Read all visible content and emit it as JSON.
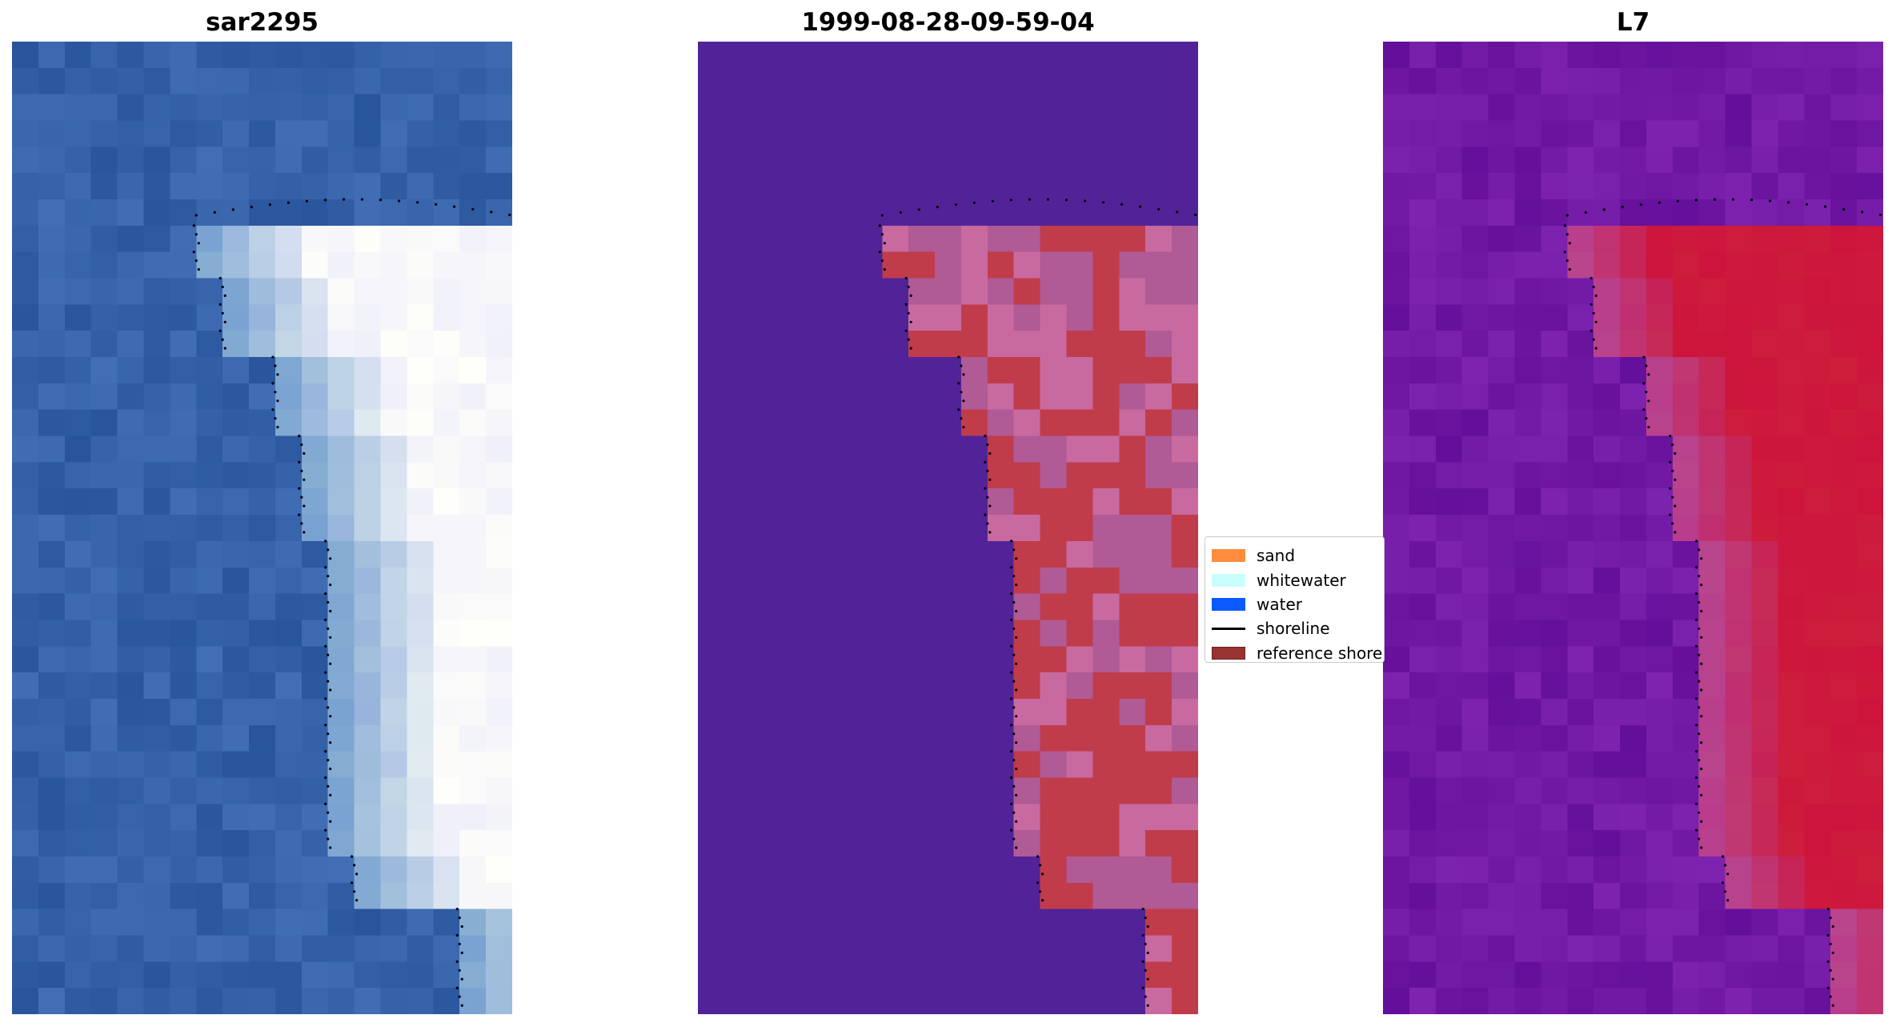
{
  "panels": [
    {
      "title": "sar2295",
      "style": "rgb"
    },
    {
      "title": "1999-08-28-09-59-04",
      "style": "classified"
    },
    {
      "title": "L7",
      "style": "index"
    }
  ],
  "colors": {
    "sand": "#ff8c3c",
    "whitewater": "#c8fffa",
    "water": "#0a5aff",
    "shoreline": "#000000",
    "reference_shoreline": "#993333",
    "classified_water": "#522398",
    "classified_land": "#c03c4b",
    "index_low": "#6a0fa0",
    "index_high": "#c20030",
    "rgb_water": "#2b5aa0",
    "rgb_white": "#f5f5ff"
  },
  "legend": {
    "items": [
      {
        "label": "sand",
        "kind": "patch",
        "color": "#ff8c3c"
      },
      {
        "label": "whitewater",
        "kind": "patch",
        "color": "#c8fffa"
      },
      {
        "label": "water",
        "kind": "patch",
        "color": "#0a5aff"
      },
      {
        "label": "shoreline",
        "kind": "line",
        "color": "#000000"
      },
      {
        "label": "reference shoreline",
        "kind": "patch",
        "color": "#993333"
      }
    ]
  }
}
